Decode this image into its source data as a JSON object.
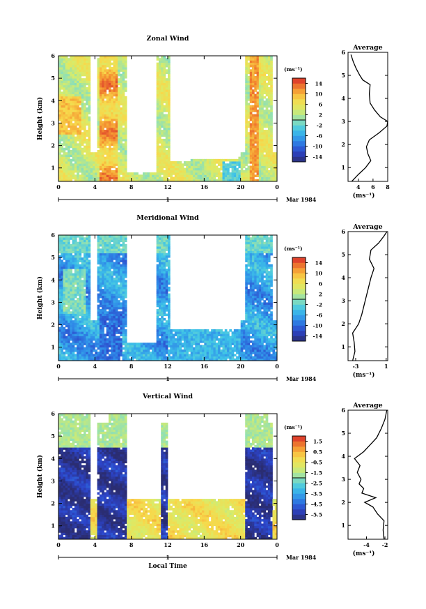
{
  "chart_data": [
    {
      "type": "heatmap",
      "title": "Zonal Wind",
      "ylabel": "Height (km)",
      "xticks": [
        "0",
        "4",
        "8",
        "12",
        "16",
        "20",
        "0"
      ],
      "yticks": [
        "1",
        "2",
        "3",
        "4",
        "5",
        "6"
      ],
      "xlim": [
        0,
        24
      ],
      "ylim": [
        0.4,
        6.0
      ],
      "date_label": "1",
      "date_text": "Mar 1984",
      "colorbar": {
        "unit": "(ms⁻¹)",
        "ticks": [
          "14",
          "10",
          "6",
          "2",
          "-2",
          "-6",
          "-10",
          "-14"
        ],
        "min": -16,
        "max": 16
      },
      "data_intervals_hours": [
        [
          0,
          3.6
        ],
        [
          4.3,
          7.6
        ],
        [
          10.8,
          11.5
        ],
        [
          11.5,
          24
        ],
        [
          20.4,
          23.3
        ]
      ],
      "average_profile": {
        "title": "Average",
        "xlabel": "(ms⁻¹)",
        "xticks": [
          "4",
          "6",
          "8"
        ],
        "xlim": [
          2.6,
          8
        ],
        "yticks": [
          "1",
          "2",
          "3",
          "4",
          "5",
          "6"
        ],
        "ylim": [
          0.4,
          6.0
        ],
        "height_km": [
          0.4,
          0.7,
          1.0,
          1.3,
          1.6,
          1.9,
          2.2,
          2.5,
          2.8,
          3.0,
          3.2,
          3.5,
          3.8,
          4.2,
          4.6,
          4.8,
          5.0,
          5.3,
          5.6,
          5.9
        ],
        "speed": [
          3.1,
          4.0,
          5.0,
          5.7,
          5.3,
          5.1,
          5.5,
          6.8,
          7.9,
          8.0,
          7.0,
          6.2,
          5.6,
          5.5,
          5.6,
          4.6,
          4.2,
          3.7,
          3.3,
          3.0
        ]
      }
    },
    {
      "type": "heatmap",
      "title": "Meridional Wind",
      "ylabel": "Height (km)",
      "xticks": [
        "0",
        "4",
        "8",
        "12",
        "16",
        "20",
        "0"
      ],
      "yticks": [
        "1",
        "2",
        "3",
        "4",
        "5",
        "6"
      ],
      "xlim": [
        0,
        24
      ],
      "ylim": [
        0.4,
        6.0
      ],
      "date_label": "1",
      "date_text": "Mar 1984",
      "colorbar": {
        "unit": "(ms⁻¹)",
        "ticks": [
          "14",
          "10",
          "6",
          "2",
          "-2",
          "-6",
          "-10",
          "-14"
        ],
        "min": -16,
        "max": 16
      },
      "average_profile": {
        "title": "Average",
        "xlabel": "(ms⁻¹)",
        "xticks": [
          "-3",
          "1"
        ],
        "xlim": [
          -4,
          1.2
        ],
        "yticks": [
          "1",
          "2",
          "3",
          "4",
          "5",
          "6"
        ],
        "ylim": [
          0.4,
          6.0
        ],
        "height_km": [
          0.4,
          0.8,
          1.2,
          1.6,
          2.0,
          2.4,
          2.8,
          3.2,
          3.6,
          4.0,
          4.4,
          4.8,
          5.2,
          5.5,
          5.8,
          6.0
        ],
        "speed": [
          -3.4,
          -3.1,
          -3.2,
          -3.4,
          -2.6,
          -2.2,
          -1.9,
          -1.6,
          -1.3,
          -1.0,
          -0.6,
          -1.2,
          -1.0,
          0.0,
          0.7,
          1.1
        ]
      }
    },
    {
      "type": "heatmap",
      "title": "Vertical Wind",
      "ylabel": "Height (km)",
      "xlabel": "Local Time",
      "xticks": [
        "0",
        "4",
        "8",
        "12",
        "16",
        "20",
        "0"
      ],
      "yticks": [
        "1",
        "2",
        "3",
        "4",
        "5",
        "6"
      ],
      "xlim": [
        0,
        24
      ],
      "ylim": [
        0.4,
        6.0
      ],
      "date_label": "1",
      "date_text": "Mar 1984",
      "colorbar": {
        "unit": "(ms⁻¹)",
        "ticks": [
          "1.5",
          "0.5",
          "-0.5",
          "-1.5",
          "-2.5",
          "-3.5",
          "-4.5",
          "-5.5"
        ],
        "min": -6,
        "max": 2
      },
      "average_profile": {
        "title": "Average",
        "xlabel": "(ms⁻¹)",
        "xticks": [
          "-4",
          "-2"
        ],
        "xlim": [
          -6,
          -1.7
        ],
        "yticks": [
          "1",
          "2",
          "3",
          "4",
          "5",
          "6"
        ],
        "ylim": [
          0.4,
          6.0
        ],
        "height_km": [
          0.4,
          0.8,
          1.2,
          1.5,
          1.8,
          2.0,
          2.2,
          2.4,
          2.6,
          2.8,
          3.0,
          3.3,
          3.6,
          3.9,
          4.2,
          4.5,
          4.8,
          5.2,
          5.6,
          6.0
        ],
        "speed": [
          -2.1,
          -2.2,
          -2.1,
          -2.8,
          -3.3,
          -4.2,
          -3.0,
          -4.5,
          -4.3,
          -4.8,
          -4.6,
          -5.0,
          -4.7,
          -5.3,
          -4.3,
          -3.6,
          -2.9,
          -2.4,
          -2.0,
          -1.8
        ]
      }
    }
  ]
}
